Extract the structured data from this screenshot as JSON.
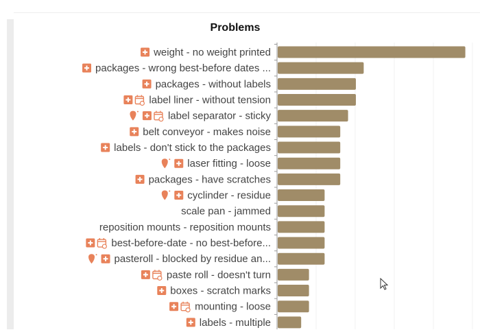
{
  "chart_data": {
    "type": "bar",
    "orientation": "horizontal",
    "title": "Problems",
    "bar_color": "#a08c68",
    "icon_color": "#e8825a",
    "grid": true,
    "xlim": [
      0,
      25
    ],
    "categories": [
      {
        "label": "weight - no weight printed",
        "icons": [
          "plus-square"
        ]
      },
      {
        "label": "packages - wrong best-before dates ...",
        "icons": [
          "plus-square"
        ]
      },
      {
        "label": "packages - without labels",
        "icons": [
          "plus-square"
        ]
      },
      {
        "label": "label liner - without tension",
        "icons": [
          "plus-square",
          "calendar"
        ]
      },
      {
        "label": "label separator - sticky",
        "icons": [
          "lightbulb",
          "plus-square",
          "calendar"
        ]
      },
      {
        "label": "belt conveyor - makes noise",
        "icons": [
          "plus-square"
        ]
      },
      {
        "label": "labels - don't stick to the packages",
        "icons": [
          "plus-square"
        ]
      },
      {
        "label": "laser fitting - loose",
        "icons": [
          "lightbulb",
          "plus-square"
        ]
      },
      {
        "label": "packages - have scratches",
        "icons": [
          "plus-square"
        ]
      },
      {
        "label": "cyclinder - residue",
        "icons": [
          "lightbulb",
          "plus-square"
        ]
      },
      {
        "label": "scale pan - jammed",
        "icons": []
      },
      {
        "label": "reposition mounts - reposition mounts",
        "icons": []
      },
      {
        "label": "best-before-date - no best-before...",
        "icons": [
          "plus-square",
          "calendar"
        ]
      },
      {
        "label": "pasteroll - blocked by residue an...",
        "icons": [
          "lightbulb",
          "plus-square"
        ]
      },
      {
        "label": "paste roll - doesn't turn",
        "icons": [
          "plus-square",
          "calendar"
        ]
      },
      {
        "label": "boxes - scratch marks",
        "icons": [
          "plus-square"
        ]
      },
      {
        "label": "mounting - loose",
        "icons": [
          "plus-square",
          "calendar"
        ]
      },
      {
        "label": "labels - multiple",
        "icons": [
          "plus-square"
        ]
      }
    ],
    "values": [
      24,
      11,
      10,
      10,
      9,
      8,
      8,
      8,
      8,
      6,
      6,
      6,
      6,
      6,
      4,
      4,
      4,
      3
    ]
  }
}
